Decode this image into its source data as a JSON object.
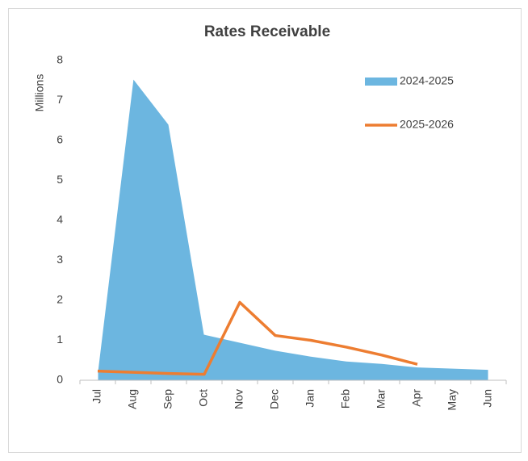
{
  "chart_data": {
    "type": "area",
    "title": "Rates Receivable",
    "y_label": "Millions",
    "categories": [
      "Jul",
      "Aug",
      "Sep",
      "Oct",
      "Nov",
      "Dec",
      "Jan",
      "Feb",
      "Mar",
      "Apr",
      "May",
      "Jun"
    ],
    "series": [
      {
        "name": "2024-2025",
        "type": "area",
        "color": "#6cb6e0",
        "values": [
          0.22,
          7.55,
          6.4,
          1.15,
          0.95,
          0.75,
          0.6,
          0.48,
          0.42,
          0.33,
          0.3,
          0.27
        ]
      },
      {
        "name": "2025-2026",
        "type": "line",
        "color": "#ed7d31",
        "values": [
          0.23,
          0.2,
          0.17,
          0.15,
          1.95,
          1.12,
          1.0,
          0.83,
          0.63,
          0.4,
          null,
          null
        ]
      }
    ],
    "ylim": [
      0,
      8
    ],
    "yticks": [
      0,
      1,
      2,
      3,
      4,
      5,
      6,
      7,
      8
    ],
    "grid": false,
    "legend": "upper right"
  }
}
